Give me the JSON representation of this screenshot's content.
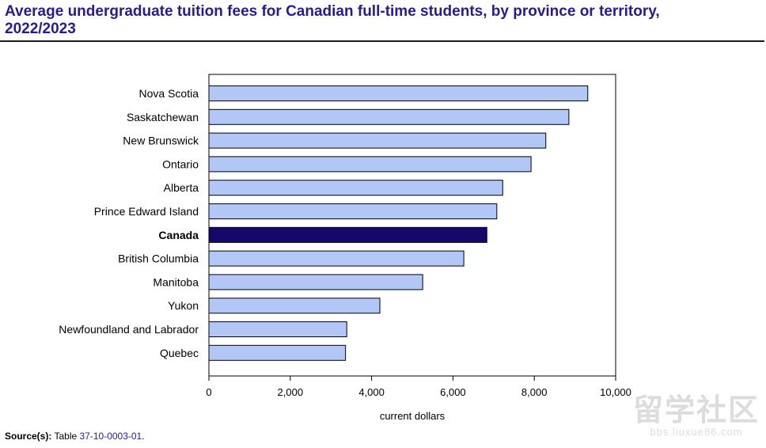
{
  "chart_data": {
    "type": "bar",
    "orientation": "horizontal",
    "title": "Average undergraduate tuition fees for Canadian full-time students, by province or territory, 2022/2023",
    "xlabel": "current dollars",
    "ylabel": "",
    "xlim": [
      0,
      10000
    ],
    "x_ticks": [
      0,
      2000,
      4000,
      6000,
      8000,
      10000
    ],
    "x_tick_labels": [
      "0",
      "2,000",
      "4,000",
      "6,000",
      "8,000",
      "10,000"
    ],
    "grid": false,
    "legend": "none",
    "categories": [
      "Nova Scotia",
      "Saskatchewan",
      "New Brunswick",
      "Ontario",
      "Alberta",
      "Prince Edward Island",
      "Canada",
      "British Columbia",
      "Manitoba",
      "Yukon",
      "Newfoundland and Labrador",
      "Quebec"
    ],
    "values": [
      9315,
      8850,
      8283,
      7920,
      7223,
      7078,
      6834,
      6267,
      5256,
      4203,
      3389,
      3359
    ],
    "highlight_category": "Canada",
    "colors": {
      "bar": "#b3c7f7",
      "highlight": "#14086b",
      "bar_stroke": "#000000",
      "axis": "#000000"
    }
  },
  "source": {
    "label": "Source(s):",
    "prefix": "Table",
    "table_id": "37-10-0003-01",
    "suffix": "."
  },
  "watermark": {
    "mark": "留学社区",
    "url": "bbs.liuxue86.com"
  }
}
